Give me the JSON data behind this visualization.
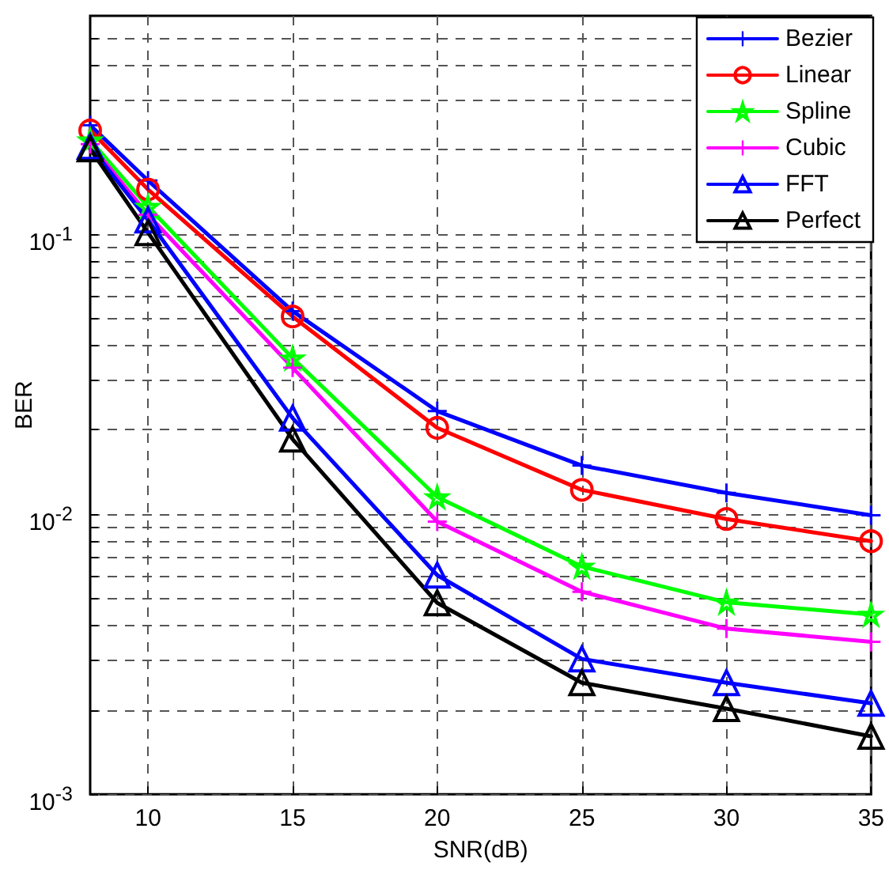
{
  "chart_data": {
    "type": "line",
    "xlabel": "SNR(dB)",
    "ylabel": "BER",
    "log": "y",
    "grid": true,
    "legend": "top right",
    "line_style": "solid",
    "x": [
      8,
      10,
      15,
      20,
      25,
      30,
      35
    ],
    "xlim": [
      8,
      35
    ],
    "xticks": [
      10,
      15,
      20,
      25,
      30,
      35
    ],
    "ylim": [
      0.001,
      0.6
    ],
    "yticks": [
      {
        "value": 0.001,
        "label": "10$^{-3}$"
      },
      {
        "value": 0.002,
        "label": null
      },
      {
        "value": 0.003,
        "label": null
      },
      {
        "value": 0.004,
        "label": null
      },
      {
        "value": 0.005,
        "label": null
      },
      {
        "value": 0.006,
        "label": null
      },
      {
        "value": 0.007,
        "label": null
      },
      {
        "value": 0.008,
        "label": null
      },
      {
        "value": 0.009,
        "label": null
      },
      {
        "value": 0.01,
        "label": "10$^{-2}$"
      },
      {
        "value": 0.02,
        "label": null
      },
      {
        "value": 0.03,
        "label": null
      },
      {
        "value": 0.04,
        "label": null
      },
      {
        "value": 0.05,
        "label": null
      },
      {
        "value": 0.06,
        "label": null
      },
      {
        "value": 0.07,
        "label": null
      },
      {
        "value": 0.08,
        "label": null
      },
      {
        "value": 0.09,
        "label": null
      },
      {
        "value": 0.1,
        "label": "10$^{-1}$"
      },
      {
        "value": 0.2,
        "label": null
      },
      {
        "value": 0.3,
        "label": null
      },
      {
        "value": 0.4,
        "label": null
      },
      {
        "value": 0.5,
        "label": null
      }
    ],
    "series": [
      {
        "name": "Bezier",
        "color": "#0000ff",
        "marker": "cross",
        "values": [
          0.244,
          0.155,
          0.053,
          0.0233,
          0.0149,
          0.0119,
          0.0099
        ]
      },
      {
        "name": "Linear",
        "color": "#ff0000",
        "marker": "circle",
        "values": [
          0.234,
          0.144,
          0.0507,
          0.0203,
          0.0122,
          0.0096,
          0.008
        ]
      },
      {
        "name": "Spline",
        "color": "#00ff00",
        "marker": "star",
        "values": [
          0.216,
          0.125,
          0.036,
          0.0115,
          0.0065,
          0.00484,
          0.00438
        ]
      },
      {
        "name": "Cubic",
        "color": "#ff00ff",
        "marker": "cross",
        "values": [
          0.209,
          0.117,
          0.0333,
          0.0094,
          0.00528,
          0.0039,
          0.0035
        ]
      },
      {
        "name": "FFT",
        "color": "#0000ff",
        "marker": "triangle",
        "values": [
          0.205,
          0.112,
          0.022,
          0.00605,
          0.00304,
          0.0025,
          0.00211
        ]
      },
      {
        "name": "Perfect",
        "color": "#000000",
        "marker": "triangle",
        "values": [
          0.201,
          0.101,
          0.0185,
          0.00482,
          0.0025,
          0.00202,
          0.00161
        ]
      }
    ]
  }
}
